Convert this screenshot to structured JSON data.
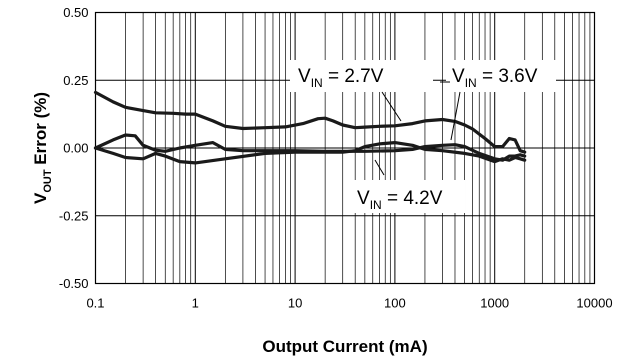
{
  "chart_data": {
    "type": "line",
    "title": "",
    "xlabel": "Output Current (mA)",
    "ylabel_main": "V",
    "ylabel_sub": "OUT",
    "ylabel_rest": " Error (%)",
    "x_scale": "log",
    "xlim": [
      0.1,
      10000
    ],
    "ylim": [
      -0.5,
      0.5
    ],
    "x_ticks": [
      {
        "value": 0.1,
        "label": "0.1"
      },
      {
        "value": 1,
        "label": "1"
      },
      {
        "value": 10,
        "label": "10"
      },
      {
        "value": 100,
        "label": "100"
      },
      {
        "value": 1000,
        "label": "1000"
      },
      {
        "value": 10000,
        "label": "10000"
      }
    ],
    "y_ticks": [
      {
        "value": 0.5,
        "label": "0.50"
      },
      {
        "value": 0.25,
        "label": "0.25"
      },
      {
        "value": 0,
        "label": "0.00"
      },
      {
        "value": -0.25,
        "label": "-0.25"
      },
      {
        "value": -0.5,
        "label": "-0.50"
      }
    ],
    "grid": true,
    "line_color": "#1a1a1a",
    "series": [
      {
        "name": "VIN = 2.7V",
        "x": [
          0.1,
          0.15,
          0.2,
          0.3,
          0.4,
          0.6,
          0.8,
          1,
          1.5,
          2,
          3,
          5,
          8,
          12,
          17,
          20,
          24,
          30,
          40,
          50,
          70,
          100,
          150,
          200,
          300,
          400,
          500,
          600,
          800,
          1000,
          1200,
          1400,
          1600,
          1800,
          2000
        ],
        "values": [
          0.205,
          0.17,
          0.15,
          0.138,
          0.13,
          0.128,
          0.125,
          0.125,
          0.1,
          0.08,
          0.072,
          0.075,
          0.078,
          0.09,
          0.108,
          0.11,
          0.1,
          0.085,
          0.075,
          0.077,
          0.08,
          0.082,
          0.09,
          0.1,
          0.105,
          0.098,
          0.085,
          0.07,
          0.035,
          0.005,
          0.005,
          0.035,
          0.03,
          -0.01,
          -0.015
        ]
      },
      {
        "name": "VIN = 3.6V",
        "x": [
          0.1,
          0.15,
          0.2,
          0.25,
          0.3,
          0.4,
          0.5,
          0.7,
          1,
          1.5,
          2,
          3,
          5,
          10,
          20,
          50,
          100,
          150,
          200,
          300,
          400,
          500,
          700,
          1000,
          1200,
          1400,
          1600,
          1800,
          2000
        ],
        "values": [
          0.0,
          0.03,
          0.048,
          0.045,
          0.01,
          -0.008,
          -0.012,
          0.0,
          0.01,
          0.02,
          -0.005,
          -0.01,
          -0.01,
          -0.01,
          -0.012,
          -0.012,
          -0.01,
          -0.005,
          0.005,
          0.01,
          0.012,
          0.005,
          -0.02,
          -0.04,
          -0.045,
          -0.03,
          -0.03,
          -0.025,
          -0.03
        ]
      },
      {
        "name": "VIN = 4.2V",
        "x": [
          0.1,
          0.15,
          0.2,
          0.3,
          0.4,
          0.5,
          0.7,
          1,
          2,
          5,
          10,
          20,
          30,
          40,
          50,
          70,
          100,
          150,
          200,
          300,
          500,
          700,
          1000,
          1200,
          1400,
          1600,
          1800,
          2000
        ],
        "values": [
          0.0,
          -0.02,
          -0.035,
          -0.04,
          -0.02,
          -0.03,
          -0.05,
          -0.055,
          -0.04,
          -0.02,
          -0.015,
          -0.015,
          -0.015,
          -0.01,
          0.005,
          0.015,
          0.02,
          0.01,
          -0.005,
          -0.01,
          -0.02,
          -0.03,
          -0.05,
          -0.04,
          -0.045,
          -0.035,
          -0.04,
          -0.045
        ]
      }
    ],
    "annotations": [
      {
        "main": "V",
        "sub": "IN",
        "rest": " = 2.7V"
      },
      {
        "main": "V",
        "sub": "IN",
        "rest": " = 3.6V"
      },
      {
        "main": "V",
        "sub": "IN",
        "rest": " = 4.2V"
      }
    ]
  }
}
